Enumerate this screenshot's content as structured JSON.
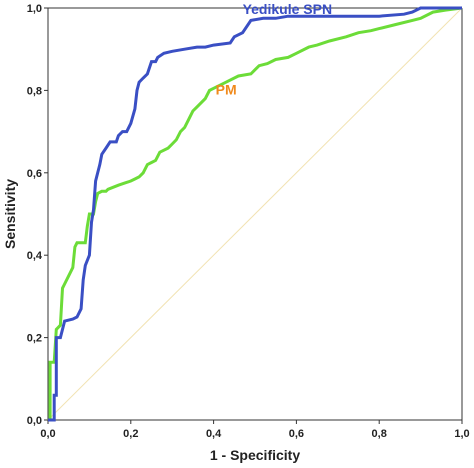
{
  "chart_data": {
    "type": "line",
    "title": "",
    "xlabel": "1 - Specificity",
    "ylabel": "Sensitivity",
    "xlim": [
      0,
      1
    ],
    "ylim": [
      0,
      1
    ],
    "xticks": [
      "0,0",
      "0,2",
      "0,4",
      "0,6",
      "0,8",
      "1,0"
    ],
    "yticks": [
      "0,0",
      "0,2",
      "0,4",
      "0,6",
      "0,8",
      "1,0"
    ],
    "grid": false,
    "legend": "inline labels",
    "reference_line": {
      "from": [
        0,
        0
      ],
      "to": [
        1,
        1
      ],
      "color": "#f2e3b3"
    },
    "series": [
      {
        "name": "Yedikule SPN",
        "color": "#3a4fc4",
        "label_at": [
          0.47,
          0.985
        ],
        "points": [
          [
            0.0,
            0.0
          ],
          [
            0.015,
            0.0
          ],
          [
            0.015,
            0.06
          ],
          [
            0.02,
            0.06
          ],
          [
            0.02,
            0.2
          ],
          [
            0.03,
            0.2
          ],
          [
            0.035,
            0.22
          ],
          [
            0.04,
            0.24
          ],
          [
            0.06,
            0.245
          ],
          [
            0.07,
            0.25
          ],
          [
            0.08,
            0.27
          ],
          [
            0.085,
            0.34
          ],
          [
            0.09,
            0.375
          ],
          [
            0.1,
            0.4
          ],
          [
            0.105,
            0.48
          ],
          [
            0.11,
            0.51
          ],
          [
            0.115,
            0.58
          ],
          [
            0.12,
            0.6
          ],
          [
            0.125,
            0.62
          ],
          [
            0.13,
            0.645
          ],
          [
            0.14,
            0.66
          ],
          [
            0.15,
            0.675
          ],
          [
            0.165,
            0.675
          ],
          [
            0.17,
            0.69
          ],
          [
            0.18,
            0.7
          ],
          [
            0.19,
            0.7
          ],
          [
            0.2,
            0.72
          ],
          [
            0.21,
            0.755
          ],
          [
            0.215,
            0.8
          ],
          [
            0.22,
            0.82
          ],
          [
            0.23,
            0.83
          ],
          [
            0.24,
            0.84
          ],
          [
            0.25,
            0.87
          ],
          [
            0.26,
            0.87
          ],
          [
            0.265,
            0.88
          ],
          [
            0.28,
            0.89
          ],
          [
            0.3,
            0.895
          ],
          [
            0.33,
            0.9
          ],
          [
            0.36,
            0.905
          ],
          [
            0.38,
            0.905
          ],
          [
            0.4,
            0.91
          ],
          [
            0.44,
            0.915
          ],
          [
            0.45,
            0.93
          ],
          [
            0.47,
            0.94
          ],
          [
            0.49,
            0.97
          ],
          [
            0.52,
            0.975
          ],
          [
            0.55,
            0.975
          ],
          [
            0.58,
            0.98
          ],
          [
            0.7,
            0.98
          ],
          [
            0.8,
            0.98
          ],
          [
            0.86,
            0.985
          ],
          [
            0.88,
            0.99
          ],
          [
            0.9,
            1.0
          ],
          [
            1.0,
            1.0
          ]
        ]
      },
      {
        "name": "PM",
        "color": "#6cdc38",
        "label_at": [
          0.405,
          0.79
        ],
        "points": [
          [
            0.0,
            0.0
          ],
          [
            0.005,
            0.0
          ],
          [
            0.005,
            0.14
          ],
          [
            0.015,
            0.14
          ],
          [
            0.02,
            0.22
          ],
          [
            0.03,
            0.23
          ],
          [
            0.035,
            0.32
          ],
          [
            0.04,
            0.33
          ],
          [
            0.05,
            0.35
          ],
          [
            0.06,
            0.37
          ],
          [
            0.065,
            0.42
          ],
          [
            0.07,
            0.43
          ],
          [
            0.09,
            0.43
          ],
          [
            0.095,
            0.47
          ],
          [
            0.1,
            0.5
          ],
          [
            0.11,
            0.5
          ],
          [
            0.115,
            0.53
          ],
          [
            0.12,
            0.55
          ],
          [
            0.13,
            0.555
          ],
          [
            0.14,
            0.555
          ],
          [
            0.145,
            0.56
          ],
          [
            0.17,
            0.57
          ],
          [
            0.185,
            0.575
          ],
          [
            0.2,
            0.58
          ],
          [
            0.21,
            0.585
          ],
          [
            0.22,
            0.59
          ],
          [
            0.23,
            0.6
          ],
          [
            0.24,
            0.62
          ],
          [
            0.25,
            0.625
          ],
          [
            0.26,
            0.63
          ],
          [
            0.27,
            0.65
          ],
          [
            0.29,
            0.66
          ],
          [
            0.3,
            0.67
          ],
          [
            0.31,
            0.68
          ],
          [
            0.32,
            0.7
          ],
          [
            0.33,
            0.71
          ],
          [
            0.34,
            0.73
          ],
          [
            0.35,
            0.75
          ],
          [
            0.36,
            0.76
          ],
          [
            0.38,
            0.78
          ],
          [
            0.39,
            0.8
          ],
          [
            0.41,
            0.81
          ],
          [
            0.43,
            0.82
          ],
          [
            0.46,
            0.835
          ],
          [
            0.49,
            0.84
          ],
          [
            0.51,
            0.86
          ],
          [
            0.53,
            0.865
          ],
          [
            0.55,
            0.875
          ],
          [
            0.58,
            0.88
          ],
          [
            0.6,
            0.89
          ],
          [
            0.63,
            0.905
          ],
          [
            0.65,
            0.91
          ],
          [
            0.68,
            0.92
          ],
          [
            0.72,
            0.93
          ],
          [
            0.75,
            0.94
          ],
          [
            0.78,
            0.945
          ],
          [
            0.8,
            0.95
          ],
          [
            0.84,
            0.96
          ],
          [
            0.88,
            0.97
          ],
          [
            0.9,
            0.975
          ],
          [
            0.93,
            0.99
          ],
          [
            0.96,
            0.995
          ],
          [
            1.0,
            1.0
          ]
        ]
      }
    ]
  }
}
